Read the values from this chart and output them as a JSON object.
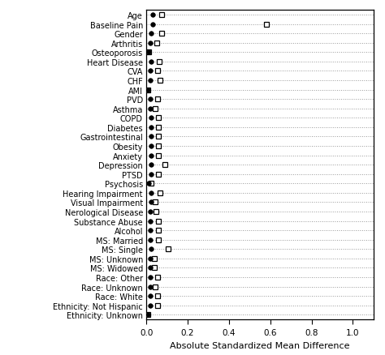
{
  "labels": [
    "Age",
    "Baseline Pain",
    "Gender",
    "Arthritis",
    "Osteoporosis",
    "Heart Disease",
    "CVA",
    "CHF",
    "AMI",
    "PVD",
    "Asthma",
    "COPD",
    "Diabetes",
    "Gastrointestinal",
    "Obesity",
    "Anxiety",
    "Depression",
    "PTSD",
    "Psychosis",
    "Hearing Impairment",
    "Visual Impairment",
    "Nerological Disease",
    "Substance Abuse",
    "Alcohol",
    "MS: Married",
    "MS: Single",
    "MS: Unknown",
    "MS: Widowed",
    "Race: Other",
    "Race: Unknown",
    "Race: White",
    "Ethnicity: Not Hispanic",
    "Ethnicity: Unknown"
  ],
  "before": [
    0.03,
    0.03,
    0.025,
    0.02,
    0.01,
    0.025,
    0.02,
    0.02,
    0.008,
    0.02,
    0.018,
    0.025,
    0.025,
    0.025,
    0.025,
    0.025,
    0.025,
    0.025,
    0.013,
    0.025,
    0.025,
    0.018,
    0.018,
    0.018,
    0.018,
    0.025,
    0.018,
    0.018,
    0.02,
    0.018,
    0.02,
    0.02,
    0.008
  ],
  "after": [
    0.075,
    0.58,
    0.075,
    0.05,
    0.01,
    0.062,
    0.055,
    0.065,
    0.008,
    0.055,
    0.042,
    0.058,
    0.06,
    0.058,
    0.058,
    0.058,
    0.09,
    0.058,
    0.022,
    0.068,
    0.042,
    0.045,
    0.058,
    0.058,
    0.058,
    0.105,
    0.038,
    0.038,
    0.055,
    0.042,
    0.055,
    0.055,
    0.008
  ],
  "xlabel": "Absolute Standardized Mean Difference",
  "xlim": [
    0.0,
    1.1
  ],
  "xticks": [
    0.0,
    0.2,
    0.4,
    0.6,
    0.8,
    1.0
  ],
  "xtick_labels": [
    "0.0",
    "0.2",
    "0.4",
    "0.6",
    "0.8",
    "1.0"
  ],
  "bg_color": "#ffffff",
  "grid_color": "#999999",
  "label_fontsize": 7.0,
  "xlabel_fontsize": 8.0,
  "xtick_fontsize": 7.5
}
